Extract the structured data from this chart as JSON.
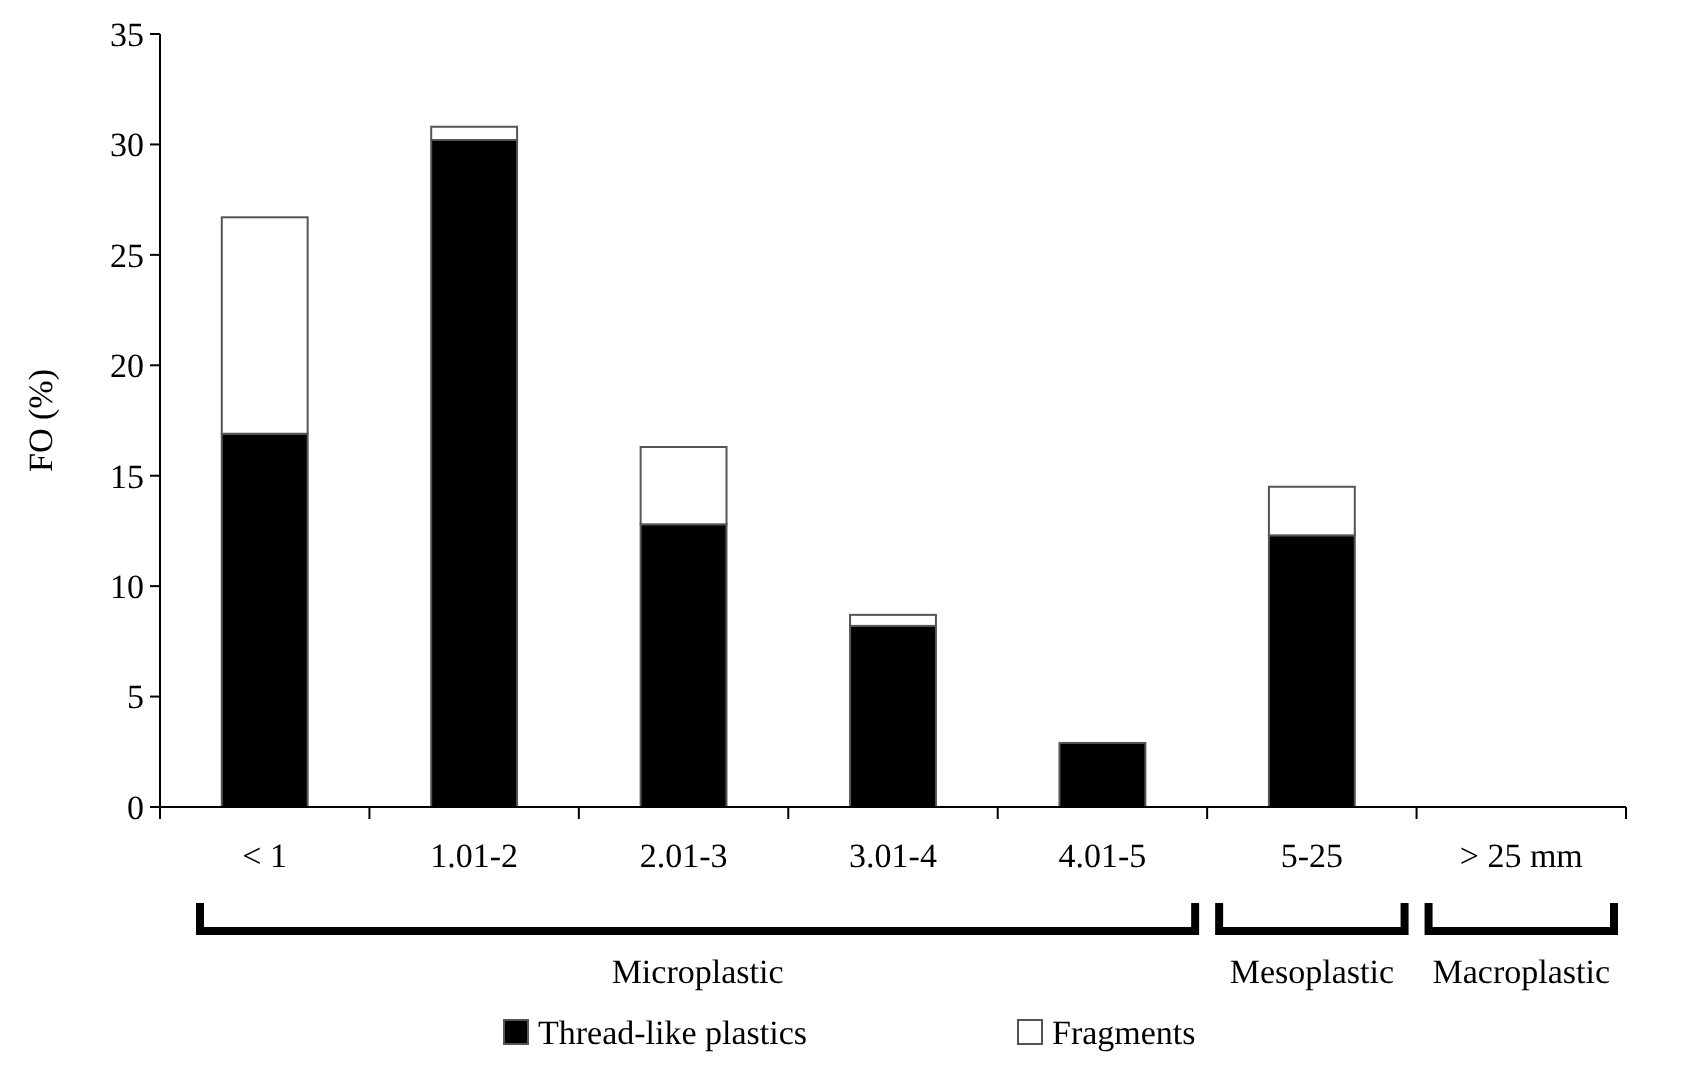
{
  "chart_data": {
    "type": "bar",
    "stacked": true,
    "ylabel": "FO (%)",
    "categories": [
      "< 1",
      "1.01-2",
      "2.01-3",
      "3.01-4",
      "4.01-5",
      "5-25",
      "> 25 mm"
    ],
    "series": [
      {
        "name": "Thread-like plastics",
        "color": "#000000",
        "values": [
          16.9,
          30.2,
          12.8,
          8.2,
          2.9,
          12.3,
          0
        ]
      },
      {
        "name": "Fragments",
        "color": "#ffffff",
        "values": [
          9.8,
          0.6,
          3.5,
          0.5,
          0,
          2.2,
          0
        ]
      }
    ],
    "ylim": [
      0,
      35
    ],
    "yticks": [
      0,
      5,
      10,
      15,
      20,
      25,
      30,
      35
    ],
    "grid": false,
    "legend": "bottom",
    "annotations": [
      "Microplastic",
      "Mesoplastic",
      "Macroplastic"
    ]
  }
}
